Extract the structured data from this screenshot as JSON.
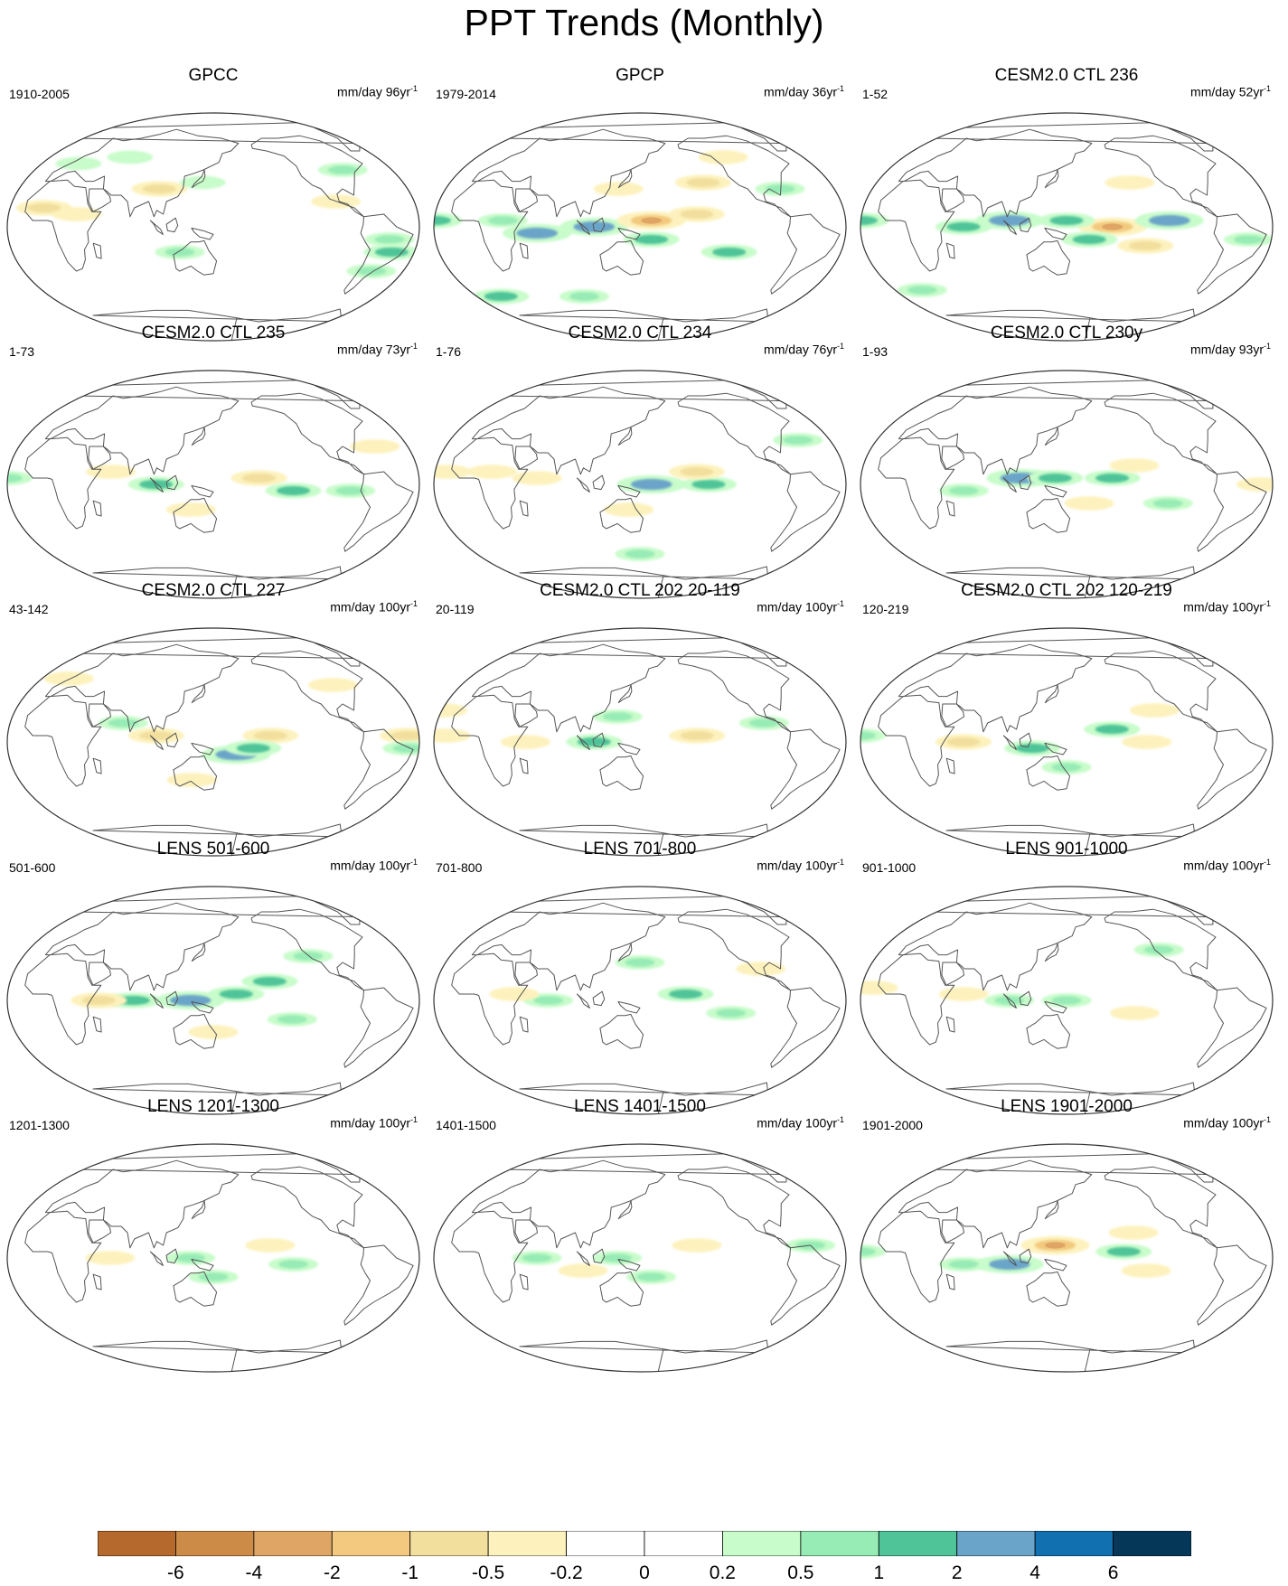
{
  "title": "PPT Trends (Monthly)",
  "units_base": "mm/day",
  "units_suffix": "yr",
  "units_exp": "-1",
  "panels": [
    {
      "title": "GPCC",
      "range": "1910-2005",
      "trend_years": "96",
      "hotspots": [
        {
          "lon": 100,
          "lat": 30,
          "v": -1
        },
        {
          "lon": -55,
          "lat": -10,
          "v": 0.5
        },
        {
          "lon": -50,
          "lat": -20,
          "v": 1
        },
        {
          "lon": 30,
          "lat": 10,
          "v": -0.5
        },
        {
          "lon": -80,
          "lat": 45,
          "v": 0.5
        },
        {
          "lon": 10,
          "lat": 50,
          "v": 0.2
        },
        {
          "lon": 120,
          "lat": -20,
          "v": 0.5
        },
        {
          "lon": 140,
          "lat": 35,
          "v": 0.2
        },
        {
          "lon": 60,
          "lat": 55,
          "v": 0.2
        },
        {
          "lon": -100,
          "lat": 20,
          "v": -0.5
        },
        {
          "lon": -60,
          "lat": -35,
          "v": 0.5
        },
        {
          "lon": 0,
          "lat": 15,
          "v": -1
        }
      ]
    },
    {
      "title": "GPCP",
      "range": "1979-2014",
      "trend_years": "36",
      "hotspots": [
        {
          "lon": 110,
          "lat": 0,
          "v": 2
        },
        {
          "lon": 60,
          "lat": -5,
          "v": 2
        },
        {
          "lon": 160,
          "lat": 5,
          "v": -2
        },
        {
          "lon": -160,
          "lat": 10,
          "v": -1
        },
        {
          "lon": -150,
          "lat": 35,
          "v": -1
        },
        {
          "lon": 160,
          "lat": -10,
          "v": 1
        },
        {
          "lon": -130,
          "lat": -20,
          "v": 1
        },
        {
          "lon": 0,
          "lat": -55,
          "v": 1
        },
        {
          "lon": 90,
          "lat": -55,
          "v": 0.5
        },
        {
          "lon": -80,
          "lat": 30,
          "v": 0.5
        },
        {
          "lon": -30,
          "lat": 5,
          "v": 1
        },
        {
          "lon": -120,
          "lat": 55,
          "v": -0.5
        },
        {
          "lon": 30,
          "lat": 5,
          "v": 0.5
        },
        {
          "lon": 130,
          "lat": 30,
          "v": -0.5
        }
      ]
    },
    {
      "title": "CESM2.0 CTL 236",
      "range": "1-52",
      "trend_years": "52",
      "hotspots": [
        {
          "lon": -170,
          "lat": 0,
          "v": -2
        },
        {
          "lon": -120,
          "lat": 5,
          "v": 2
        },
        {
          "lon": 150,
          "lat": 5,
          "v": 1
        },
        {
          "lon": 100,
          "lat": 5,
          "v": 2
        },
        {
          "lon": 60,
          "lat": 0,
          "v": 1
        },
        {
          "lon": -140,
          "lat": -15,
          "v": -1
        },
        {
          "lon": 170,
          "lat": -10,
          "v": 1
        },
        {
          "lon": -150,
          "lat": 35,
          "v": -0.5
        },
        {
          "lon": -30,
          "lat": 5,
          "v": 1
        },
        {
          "lon": -50,
          "lat": -10,
          "v": 0.5
        },
        {
          "lon": 0,
          "lat": -50,
          "v": 0.5
        }
      ]
    },
    {
      "title": "CESM2.0 CTL 235",
      "range": "1-73",
      "trend_years": "73",
      "hotspots": [
        {
          "lon": -170,
          "lat": 5,
          "v": -1
        },
        {
          "lon": -140,
          "lat": -5,
          "v": 1
        },
        {
          "lon": -90,
          "lat": -5,
          "v": 0.5
        },
        {
          "lon": 100,
          "lat": 0,
          "v": 1
        },
        {
          "lon": 60,
          "lat": 10,
          "v": -0.5
        },
        {
          "lon": 130,
          "lat": -20,
          "v": -0.5
        },
        {
          "lon": -30,
          "lat": 5,
          "v": 0.5
        },
        {
          "lon": -60,
          "lat": 30,
          "v": -0.5
        }
      ]
    },
    {
      "title": "CESM2.0 CTL 234",
      "range": "1-76",
      "trend_years": "76",
      "hotspots": [
        {
          "lon": 160,
          "lat": 0,
          "v": 2
        },
        {
          "lon": -150,
          "lat": 0,
          "v": 1
        },
        {
          "lon": -160,
          "lat": 10,
          "v": -1
        },
        {
          "lon": 60,
          "lat": 5,
          "v": -0.5
        },
        {
          "lon": 140,
          "lat": -20,
          "v": -0.5
        },
        {
          "lon": -60,
          "lat": 35,
          "v": 0.5
        },
        {
          "lon": 20,
          "lat": 10,
          "v": -0.5
        },
        {
          "lon": -20,
          "lat": 10,
          "v": -0.5
        },
        {
          "lon": 150,
          "lat": -55,
          "v": 0.5
        }
      ]
    },
    {
      "title": "CESM2.0 CTL 230y",
      "range": "1-93",
      "trend_years": "93",
      "hotspots": [
        {
          "lon": -170,
          "lat": 5,
          "v": 1
        },
        {
          "lon": 110,
          "lat": 5,
          "v": 2
        },
        {
          "lon": 140,
          "lat": 5,
          "v": 1
        },
        {
          "lon": -150,
          "lat": 15,
          "v": -0.5
        },
        {
          "lon": 60,
          "lat": -5,
          "v": 0.5
        },
        {
          "lon": -40,
          "lat": 0,
          "v": -0.5
        },
        {
          "lon": 170,
          "lat": -15,
          "v": -0.5
        },
        {
          "lon": -120,
          "lat": -15,
          "v": 0.5
        }
      ]
    },
    {
      "title": "CESM2.0 CTL 227",
      "range": "43-142",
      "trend_years": "100",
      "hotspots": [
        {
          "lon": 170,
          "lat": -10,
          "v": 2
        },
        {
          "lon": -160,
          "lat": 5,
          "v": -1
        },
        {
          "lon": 100,
          "lat": 5,
          "v": -1
        },
        {
          "lon": 70,
          "lat": 15,
          "v": 0.5
        },
        {
          "lon": -40,
          "lat": 5,
          "v": -1
        },
        {
          "lon": -40,
          "lat": -5,
          "v": 0.5
        },
        {
          "lon": 0,
          "lat": 50,
          "v": -0.5
        },
        {
          "lon": -90,
          "lat": 45,
          "v": -0.5
        },
        {
          "lon": 130,
          "lat": -30,
          "v": -0.5
        },
        {
          "lon": -175,
          "lat": -5,
          "v": 1
        }
      ]
    },
    {
      "title": "CESM2.0 CTL 202 20-119",
      "range": "20-119",
      "trend_years": "100",
      "hotspots": [
        {
          "lon": -160,
          "lat": 5,
          "v": -1
        },
        {
          "lon": 110,
          "lat": 0,
          "v": 1
        },
        {
          "lon": 130,
          "lat": 20,
          "v": 0.5
        },
        {
          "lon": 50,
          "lat": 0,
          "v": -0.5
        },
        {
          "lon": -100,
          "lat": 15,
          "v": 0.5
        },
        {
          "lon": -30,
          "lat": 25,
          "v": -0.5
        },
        {
          "lon": -20,
          "lat": 5,
          "v": -0.5
        }
      ]
    },
    {
      "title": "CESM2.0 CTL 202 120-219",
      "range": "120-219",
      "trend_years": "100",
      "hotspots": [
        {
          "lon": -170,
          "lat": 10,
          "v": 1
        },
        {
          "lon": 120,
          "lat": -5,
          "v": 1
        },
        {
          "lon": 60,
          "lat": 0,
          "v": -1
        },
        {
          "lon": 150,
          "lat": -20,
          "v": 0.5
        },
        {
          "lon": -140,
          "lat": 0,
          "v": -0.5
        },
        {
          "lon": -30,
          "lat": 5,
          "v": 0.5
        },
        {
          "lon": -130,
          "lat": 25,
          "v": -0.5
        }
      ]
    },
    {
      "title": "LENS 501-600",
      "range": "501-600",
      "trend_years": "100",
      "hotspots": [
        {
          "lon": 80,
          "lat": 0,
          "v": 1
        },
        {
          "lon": 130,
          "lat": 0,
          "v": 2
        },
        {
          "lon": 170,
          "lat": 5,
          "v": 1
        },
        {
          "lon": -160,
          "lat": 15,
          "v": 1
        },
        {
          "lon": 50,
          "lat": 0,
          "v": -1
        },
        {
          "lon": 150,
          "lat": -25,
          "v": -0.5
        },
        {
          "lon": -140,
          "lat": -15,
          "v": 0.5
        },
        {
          "lon": -120,
          "lat": 35,
          "v": 0.5
        }
      ]
    },
    {
      "title": "LENS 701-800",
      "range": "701-800",
      "trend_years": "100",
      "hotspots": [
        {
          "lon": -170,
          "lat": 5,
          "v": 1
        },
        {
          "lon": 70,
          "lat": 0,
          "v": 0.5
        },
        {
          "lon": 40,
          "lat": 5,
          "v": -0.5
        },
        {
          "lon": -130,
          "lat": -10,
          "v": 0.5
        },
        {
          "lon": -100,
          "lat": 25,
          "v": -0.5
        },
        {
          "lon": 150,
          "lat": 30,
          "v": 0.5
        }
      ]
    },
    {
      "title": "LENS 901-1000",
      "range": "901-1000",
      "trend_years": "100",
      "hotspots": [
        {
          "lon": 100,
          "lat": 0,
          "v": 0.5
        },
        {
          "lon": 150,
          "lat": 0,
          "v": 0.5
        },
        {
          "lon": 60,
          "lat": 5,
          "v": -0.5
        },
        {
          "lon": -150,
          "lat": -10,
          "v": -0.5
        },
        {
          "lon": -20,
          "lat": 10,
          "v": -0.5
        },
        {
          "lon": -120,
          "lat": 40,
          "v": 0.5
        }
      ]
    },
    {
      "title": "LENS 1201-1300",
      "range": "1201-1300",
      "trend_years": "100",
      "hotspots": [
        {
          "lon": 130,
          "lat": 0,
          "v": 0.5
        },
        {
          "lon": -160,
          "lat": 10,
          "v": -0.5
        },
        {
          "lon": 60,
          "lat": 0,
          "v": -0.5
        },
        {
          "lon": -140,
          "lat": -5,
          "v": 0.5
        },
        {
          "lon": 150,
          "lat": -15,
          "v": 0.5
        }
      ]
    },
    {
      "title": "LENS 1401-1500",
      "range": "1401-1500",
      "trend_years": "100",
      "hotspots": [
        {
          "lon": 100,
          "lat": -10,
          "v": -0.5
        },
        {
          "lon": 130,
          "lat": 0,
          "v": 0.5
        },
        {
          "lon": 60,
          "lat": 0,
          "v": 0.5
        },
        {
          "lon": -160,
          "lat": 10,
          "v": -0.5
        },
        {
          "lon": -60,
          "lat": 10,
          "v": 0.5
        },
        {
          "lon": 160,
          "lat": -15,
          "v": 0.5
        }
      ]
    },
    {
      "title": "LENS 1901-2000",
      "range": "1901-2000",
      "trend_years": "100",
      "hotspots": [
        {
          "lon": 140,
          "lat": 10,
          "v": -2
        },
        {
          "lon": 100,
          "lat": -5,
          "v": 2
        },
        {
          "lon": -160,
          "lat": 5,
          "v": 1
        },
        {
          "lon": -150,
          "lat": 20,
          "v": -0.5
        },
        {
          "lon": -140,
          "lat": -10,
          "v": -0.5
        },
        {
          "lon": 60,
          "lat": -5,
          "v": 0.5
        },
        {
          "lon": -30,
          "lat": 5,
          "v": 0.5
        }
      ]
    }
  ],
  "colorbar": {
    "levels": [
      "-6",
      "-4",
      "-2",
      "-1",
      "-0.5",
      "-0.2",
      "0",
      "0.2",
      "0.5",
      "1",
      "2",
      "4",
      "6"
    ],
    "colors": [
      "#b5692c",
      "#cd8b48",
      "#dfa564",
      "#f2c97e",
      "#f2df9e",
      "#fdf2bd",
      "#ffffff",
      "#ffffff",
      "#c8fcca",
      "#97ebb5",
      "#4fc498",
      "#6aa4c8",
      "#1070b0",
      "#053858"
    ]
  }
}
